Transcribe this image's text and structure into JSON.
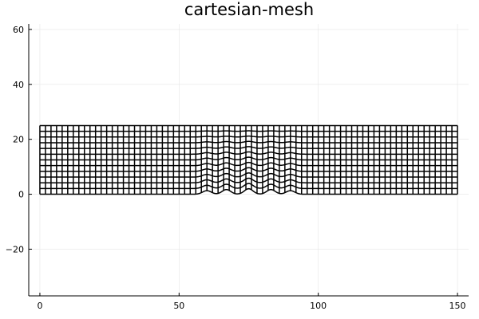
{
  "chart_data": {
    "type": "line",
    "title": "cartesian-mesh",
    "xlabel": "",
    "ylabel": "",
    "xlim": [
      -4,
      154
    ],
    "ylim": [
      -37,
      62
    ],
    "x_ticks": [
      0,
      50,
      100,
      150
    ],
    "y_ticks": [
      -20,
      0,
      20,
      40,
      60
    ],
    "x_tick_labels": [
      "0",
      "50",
      "100",
      "150"
    ],
    "y_tick_labels": [
      "−20",
      "0",
      "20",
      "40",
      "60"
    ],
    "grid": true,
    "legend": "none",
    "mesh": {
      "x_range": [
        0,
        150
      ],
      "y_range": [
        0,
        25
      ],
      "nx": 75,
      "ny": 12,
      "bumps": [
        {
          "center": 60,
          "amplitude": 1.3
        },
        {
          "center": 67,
          "amplitude": 1.7
        },
        {
          "center": 75,
          "amplitude": 2.0
        },
        {
          "center": 83,
          "amplitude": 1.7
        },
        {
          "center": 90,
          "amplitude": 1.3
        }
      ],
      "bump_width": 2.2,
      "line_color": "#000000"
    }
  }
}
